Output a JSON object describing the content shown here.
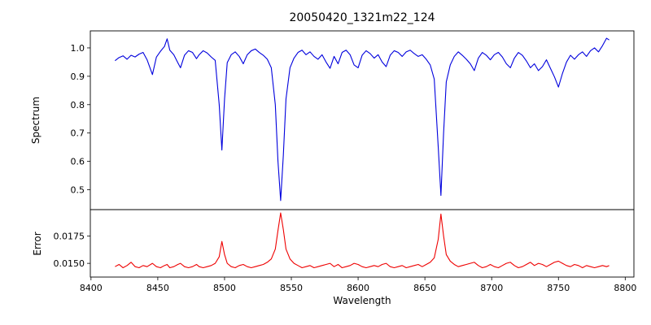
{
  "chart_data": {
    "type": "line",
    "title": "20050420_1321m22_124",
    "xlabel": "Wavelength",
    "xlim": [
      8399.5,
      8806.5
    ],
    "xticks": [
      8400,
      8450,
      8500,
      8550,
      8600,
      8650,
      8700,
      8750,
      8800
    ],
    "grid": false,
    "legend": "none",
    "panels": [
      {
        "name": "spectrum",
        "ylabel": "Spectrum",
        "color": "#0000dd",
        "ylim": [
          0.43,
          1.06
        ],
        "yticks": [
          0.5,
          0.6,
          0.7,
          0.8,
          0.9,
          1.0
        ],
        "ytick_decimals": 1
      },
      {
        "name": "error",
        "ylabel": "Error",
        "color": "#ee0000",
        "ylim": [
          0.01375,
          0.0199
        ],
        "yticks": [
          0.015,
          0.0175
        ],
        "ytick_decimals": 4
      }
    ],
    "x": [
      8418,
      8421,
      8424,
      8427,
      8430,
      8433,
      8436,
      8439,
      8442,
      8446,
      8449,
      8452,
      8455,
      8457,
      8459,
      8462,
      8465,
      8467,
      8470,
      8473,
      8476,
      8479,
      8481,
      8484,
      8487,
      8490,
      8493,
      8496,
      8498,
      8500,
      8502,
      8505,
      8508,
      8511,
      8514,
      8517,
      8520,
      8523,
      8526,
      8529,
      8532,
      8535,
      8538,
      8540,
      8542,
      8544,
      8546,
      8549,
      8552,
      8555,
      8558,
      8561,
      8564,
      8567,
      8570,
      8573,
      8576,
      8579,
      8582,
      8585,
      8588,
      8591,
      8594,
      8597,
      8600,
      8603,
      8606,
      8609,
      8612,
      8615,
      8618,
      8621,
      8624,
      8627,
      8630,
      8633,
      8636,
      8639,
      8642,
      8645,
      8648,
      8651,
      8654,
      8657,
      8660,
      8662,
      8664,
      8666,
      8669,
      8672,
      8675,
      8678,
      8681,
      8684,
      8687,
      8690,
      8693,
      8696,
      8699,
      8702,
      8705,
      8708,
      8711,
      8714,
      8717,
      8720,
      8723,
      8726,
      8729,
      8732,
      8735,
      8738,
      8741,
      8744,
      8747,
      8750,
      8753,
      8756,
      8759,
      8762,
      8765,
      8768,
      8771,
      8774,
      8777,
      8780,
      8783,
      8786,
      8788
    ],
    "series": [
      {
        "name": "spectrum",
        "values": [
          0.955,
          0.966,
          0.972,
          0.96,
          0.974,
          0.968,
          0.978,
          0.984,
          0.958,
          0.906,
          0.968,
          0.988,
          1.005,
          1.032,
          0.992,
          0.976,
          0.948,
          0.93,
          0.974,
          0.99,
          0.984,
          0.962,
          0.976,
          0.99,
          0.982,
          0.968,
          0.956,
          0.8,
          0.64,
          0.82,
          0.948,
          0.976,
          0.986,
          0.97,
          0.944,
          0.976,
          0.99,
          0.996,
          0.984,
          0.974,
          0.96,
          0.93,
          0.8,
          0.6,
          0.462,
          0.62,
          0.82,
          0.93,
          0.964,
          0.984,
          0.992,
          0.976,
          0.986,
          0.97,
          0.96,
          0.976,
          0.95,
          0.928,
          0.97,
          0.944,
          0.984,
          0.992,
          0.976,
          0.94,
          0.93,
          0.974,
          0.99,
          0.98,
          0.964,
          0.976,
          0.95,
          0.934,
          0.974,
          0.99,
          0.984,
          0.97,
          0.986,
          0.992,
          0.98,
          0.97,
          0.976,
          0.96,
          0.94,
          0.89,
          0.65,
          0.48,
          0.7,
          0.88,
          0.94,
          0.97,
          0.986,
          0.974,
          0.96,
          0.944,
          0.92,
          0.964,
          0.984,
          0.974,
          0.958,
          0.976,
          0.984,
          0.968,
          0.944,
          0.93,
          0.964,
          0.984,
          0.974,
          0.954,
          0.93,
          0.944,
          0.92,
          0.934,
          0.958,
          0.928,
          0.898,
          0.862,
          0.91,
          0.95,
          0.974,
          0.96,
          0.976,
          0.986,
          0.97,
          0.99,
          1.0,
          0.986,
          1.008,
          1.034,
          1.028
        ]
      },
      {
        "name": "error",
        "values": [
          0.0147,
          0.0149,
          0.0146,
          0.0148,
          0.0151,
          0.0147,
          0.0146,
          0.0148,
          0.0147,
          0.015,
          0.0147,
          0.0146,
          0.0148,
          0.0149,
          0.0146,
          0.0147,
          0.0149,
          0.015,
          0.0147,
          0.0146,
          0.0147,
          0.0149,
          0.0147,
          0.0146,
          0.0147,
          0.0148,
          0.015,
          0.0156,
          0.017,
          0.0158,
          0.015,
          0.0147,
          0.0146,
          0.0148,
          0.0149,
          0.0147,
          0.0146,
          0.0147,
          0.0148,
          0.0149,
          0.0151,
          0.0154,
          0.0163,
          0.018,
          0.0196,
          0.0181,
          0.0163,
          0.0154,
          0.015,
          0.0148,
          0.0146,
          0.0147,
          0.0148,
          0.0146,
          0.0147,
          0.0148,
          0.0149,
          0.015,
          0.0147,
          0.0149,
          0.0146,
          0.0147,
          0.0148,
          0.015,
          0.0149,
          0.0147,
          0.0146,
          0.0147,
          0.0148,
          0.0147,
          0.0149,
          0.015,
          0.0147,
          0.0146,
          0.0147,
          0.0148,
          0.0146,
          0.0147,
          0.0148,
          0.0149,
          0.0147,
          0.0149,
          0.0151,
          0.0155,
          0.0172,
          0.0195,
          0.0175,
          0.0158,
          0.0152,
          0.0149,
          0.0147,
          0.0148,
          0.0149,
          0.015,
          0.0151,
          0.0148,
          0.0146,
          0.0147,
          0.0149,
          0.0147,
          0.0146,
          0.0148,
          0.015,
          0.0151,
          0.0148,
          0.0146,
          0.0147,
          0.0149,
          0.0151,
          0.0148,
          0.015,
          0.0149,
          0.0147,
          0.0149,
          0.0151,
          0.0152,
          0.015,
          0.0148,
          0.0147,
          0.0149,
          0.0148,
          0.0146,
          0.0148,
          0.0147,
          0.0146,
          0.0147,
          0.0148,
          0.0147,
          0.0148
        ]
      }
    ]
  }
}
